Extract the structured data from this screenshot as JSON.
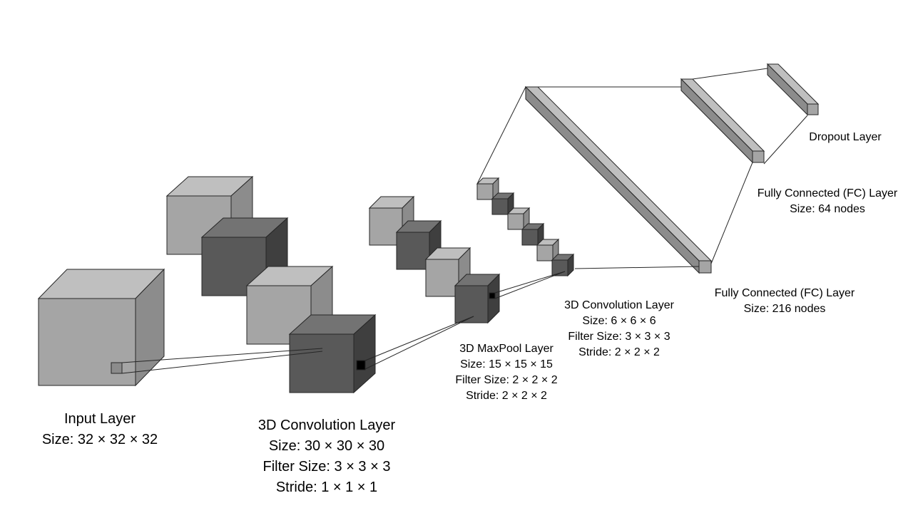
{
  "colors": {
    "light_front": "#a5a5a5",
    "light_top": "#bfbfbf",
    "light_side": "#8c8c8c",
    "dark_front": "#595959",
    "dark_top": "#737373",
    "dark_side": "#3f3f3f",
    "stroke": "#262626",
    "filter_black": "#000000"
  },
  "layers": {
    "input": {
      "title": "Input Layer",
      "size": "Size: 32 × 32 × 32"
    },
    "conv1": {
      "title": "3D Convolution Layer",
      "size": "Size: 30 × 30 × 30",
      "filter": "Filter Size: 3 × 3 × 3",
      "stride": "Stride: 1 × 1 × 1"
    },
    "maxpool": {
      "title": "3D MaxPool Layer",
      "size": "Size: 15 × 15 × 15",
      "filter": "Filter Size: 2 × 2 × 2",
      "stride": "Stride: 2 × 2 × 2"
    },
    "conv2": {
      "title": "3D Convolution Layer",
      "size": "Size: 6 × 6 × 6",
      "filter": "Filter Size: 3 × 3 × 3",
      "stride": "Stride: 2 × 2 × 2"
    },
    "fc1": {
      "title": "Fully Connected (FC) Layer",
      "size": "Size: 216 nodes"
    },
    "fc2": {
      "title": "Fully Connected (FC) Layer",
      "size": "Size: 64 nodes"
    },
    "dropout": {
      "title": "Dropout Layer"
    }
  }
}
